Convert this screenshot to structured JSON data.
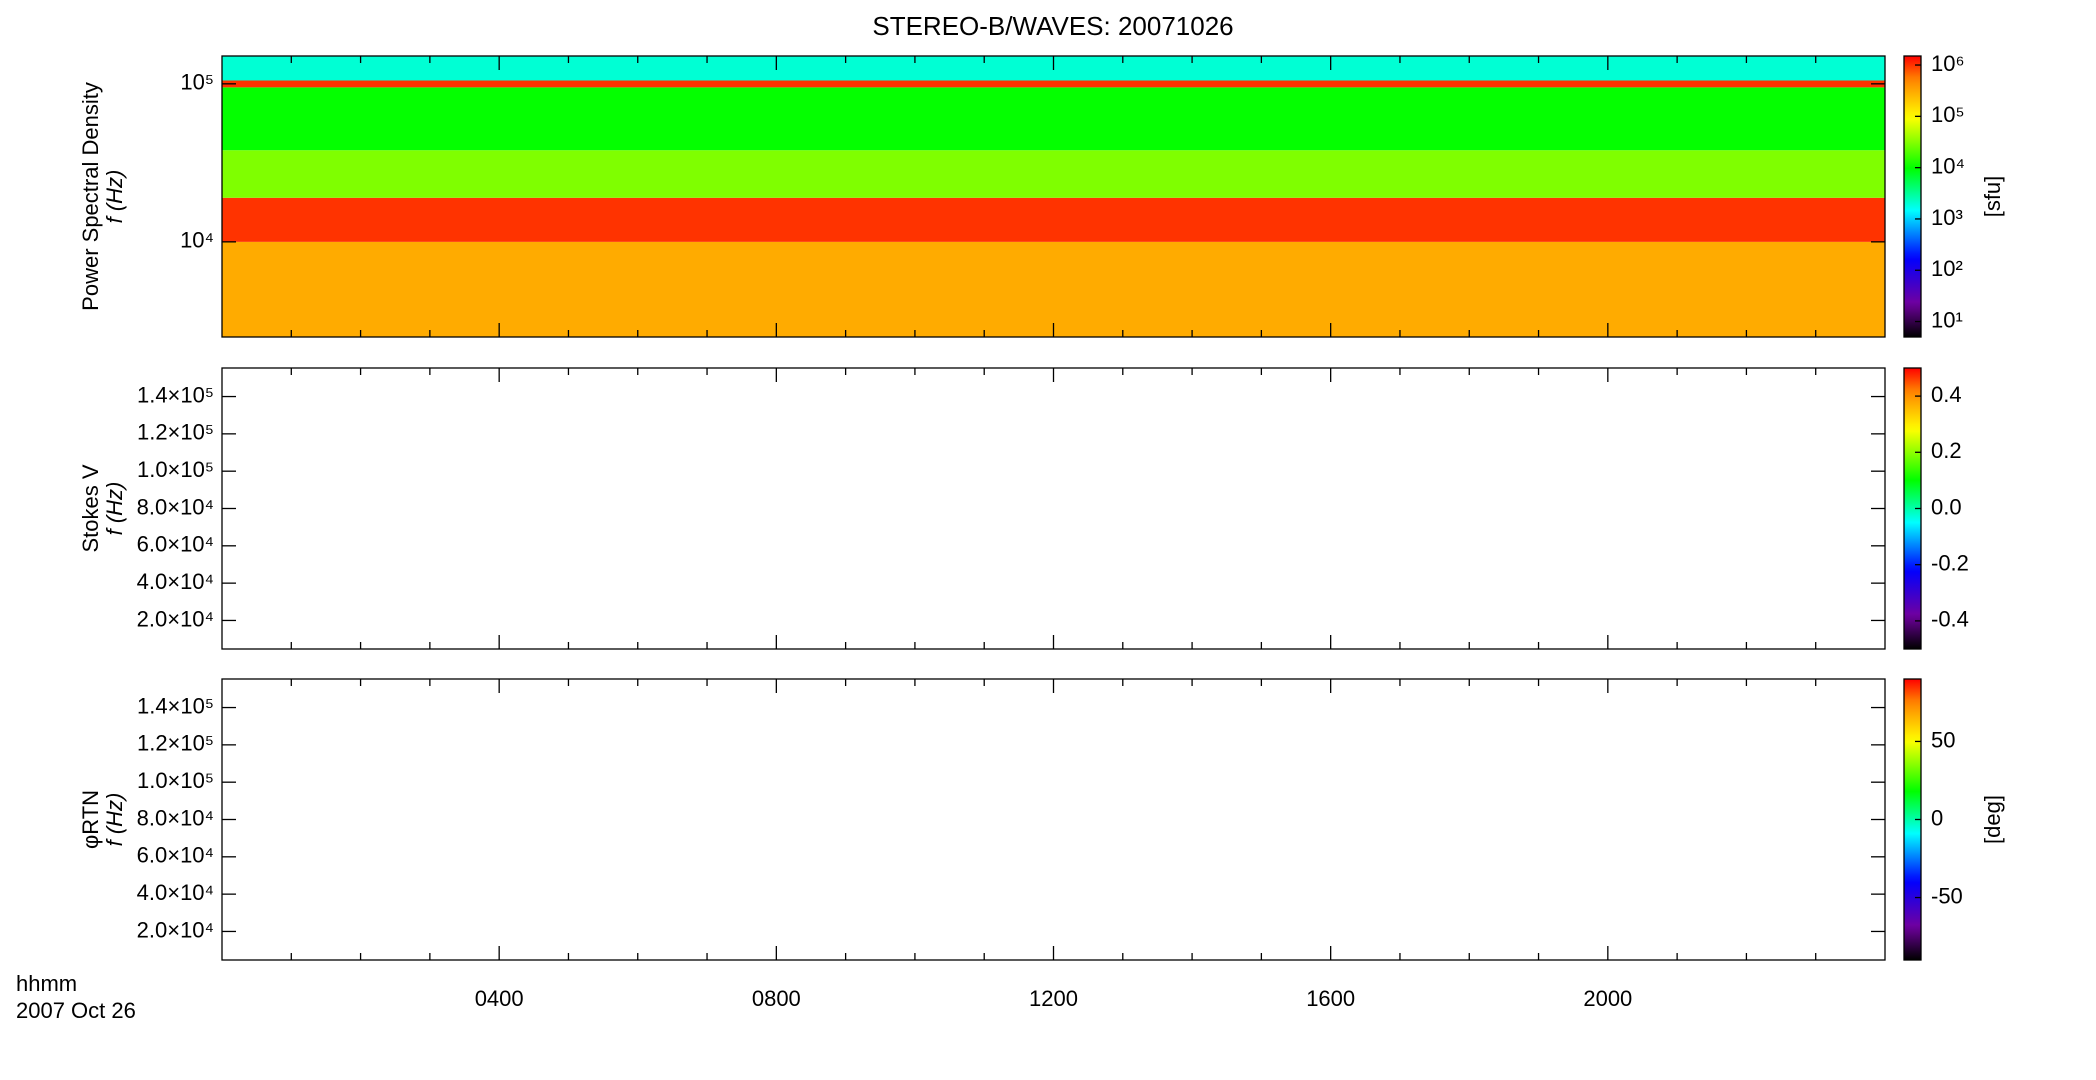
{
  "chart_data": {
    "type": "spectrogram",
    "title": "STEREO-B/WAVES: 20071026",
    "xlim": [
      0,
      24
    ],
    "xticks": [
      {
        "value": 4,
        "label": "0400"
      },
      {
        "value": 8,
        "label": "0800"
      },
      {
        "value": 12,
        "label": "1200"
      },
      {
        "value": 16,
        "label": "1600"
      },
      {
        "value": 20,
        "label": "2000"
      }
    ],
    "xminorticks": [
      1,
      2,
      3,
      5,
      6,
      7,
      9,
      10,
      11,
      13,
      14,
      15,
      17,
      18,
      19,
      21,
      22,
      23
    ],
    "xlabel": [
      "hhmm",
      "2007 Oct 26"
    ],
    "panels": [
      {
        "type": "heatmap",
        "ylabel": [
          "Power Spectral Density",
          "f (Hz)"
        ],
        "log_y": true,
        "ylim": [
          2500,
          150000
        ],
        "yticks": [
          {
            "value": 10000,
            "label": "10⁴"
          },
          {
            "value": 100000,
            "label": "10⁵"
          }
        ],
        "y_edges": [
          2500,
          10000,
          19000,
          38000,
          95000,
          105000,
          150000
        ],
        "values": [
          300000,
          1000000,
          30000,
          10000,
          1000000,
          2000
        ],
        "colorbar": {
          "log": true,
          "lim": [
            5,
            1500000
          ],
          "label": "[sfu]",
          "ticks": [
            {
              "value": 10,
              "label": "10¹"
            },
            {
              "value": 100,
              "label": "10²"
            },
            {
              "value": 1000,
              "label": "10³"
            },
            {
              "value": 10000,
              "label": "10⁴"
            },
            {
              "value": 100000,
              "label": "10⁵"
            },
            {
              "value": 1000000,
              "label": "10⁶"
            }
          ]
        }
      },
      {
        "type": "heatmap",
        "ylabel": [
          "Stokes V",
          "f (Hz)"
        ],
        "log_y": false,
        "ylim": [
          4700,
          155300
        ],
        "yticks": [
          {
            "value": 20000,
            "label": "2.0×10⁴"
          },
          {
            "value": 40000,
            "label": "4.0×10⁴"
          },
          {
            "value": 60000,
            "label": "6.0×10⁴"
          },
          {
            "value": 80000,
            "label": "8.0×10⁴"
          },
          {
            "value": 100000,
            "label": "1.0×10⁵"
          },
          {
            "value": 120000,
            "label": "1.2×10⁵"
          },
          {
            "value": 140000,
            "label": "1.4×10⁵"
          }
        ],
        "colorbar": {
          "log": false,
          "lim": [
            -0.5,
            0.5
          ],
          "ticks": [
            -0.4,
            -0.2,
            {
              "value": 0,
              "label": "0.0"
            },
            0.2,
            0.4
          ]
        }
      },
      {
        "type": "heatmap",
        "ylabel": [
          "φRTN",
          "f (Hz)"
        ],
        "log_y": false,
        "ylim": [
          4700,
          155300
        ],
        "yticks": [
          {
            "value": 20000,
            "label": "2.0×10⁴"
          },
          {
            "value": 40000,
            "label": "4.0×10⁴"
          },
          {
            "value": 60000,
            "label": "6.0×10⁴"
          },
          {
            "value": 80000,
            "label": "8.0×10⁴"
          },
          {
            "value": 100000,
            "label": "1.0×10⁵"
          },
          {
            "value": 120000,
            "label": "1.2×10⁵"
          },
          {
            "value": 140000,
            "label": "1.4×10⁵"
          }
        ],
        "colorbar": {
          "log": false,
          "lim": [
            -90,
            90
          ],
          "label": "[deg]",
          "ticks": [
            -50,
            0,
            50
          ]
        }
      }
    ]
  }
}
